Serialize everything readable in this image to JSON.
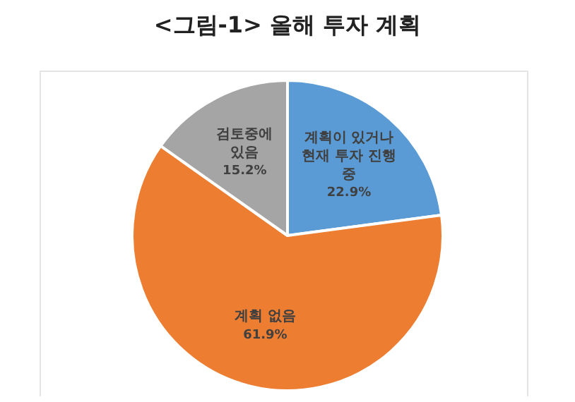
{
  "chart_data": {
    "type": "pie",
    "title": "<그림-1> 올해 투자 계획",
    "categories": [
      "계획이 있거나 현재 투자 진행 중",
      "계획 없음",
      "검토중에 있음"
    ],
    "values": [
      22.9,
      61.9,
      15.2
    ],
    "value_labels": [
      "22.9%",
      "61.9%",
      "15.2%"
    ],
    "colors": [
      "#5b9bd5",
      "#ed7d31",
      "#a5a5a5"
    ],
    "legend": false
  }
}
